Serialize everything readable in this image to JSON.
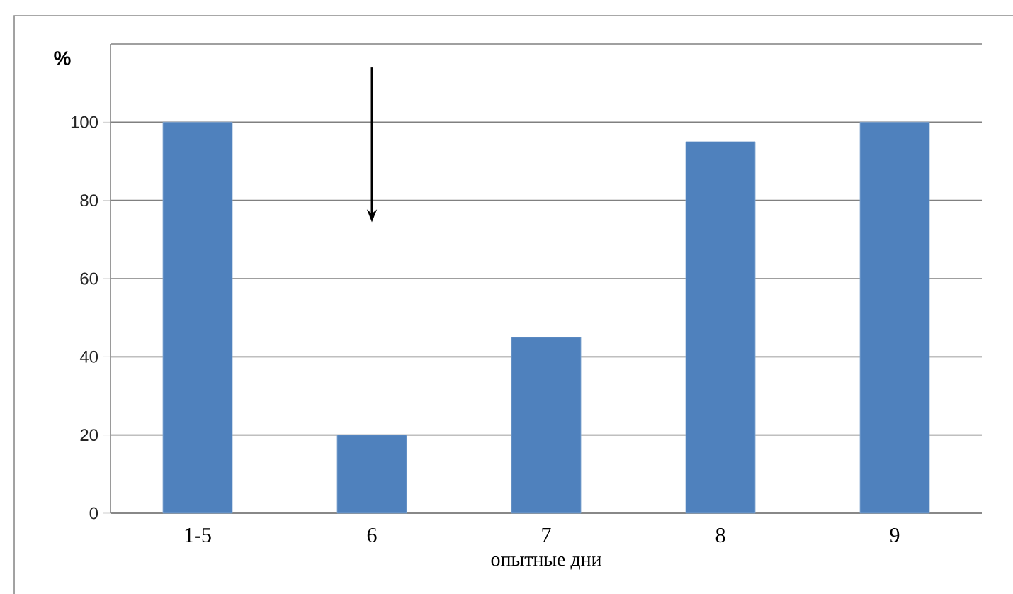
{
  "chart_data": {
    "type": "bar",
    "xlabel": "опытные дни",
    "ylabel": "%",
    "categories": [
      "1-5",
      "6",
      "7",
      "8",
      "9"
    ],
    "values": [
      100,
      20,
      45,
      95,
      100
    ],
    "color": "#4f81bd",
    "ylim": [
      0,
      120
    ],
    "yticks": [
      0,
      20,
      40,
      60,
      80,
      100
    ],
    "grid": "y"
  }
}
